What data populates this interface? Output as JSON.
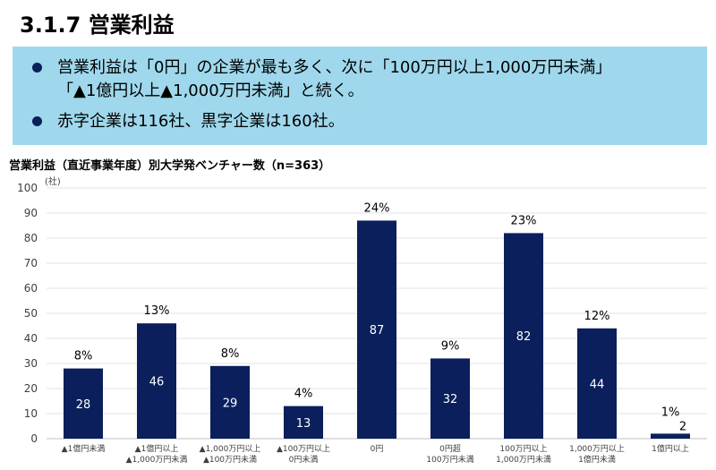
{
  "page": {
    "title": "3.1.7 営業利益"
  },
  "summary": {
    "bullets": [
      {
        "line1": "営業利益は「0円」の企業が最も多く、次に「100万円以上1,000万円未満」",
        "line2": "「▲1億円以上▲1,000万円未満」と続く。"
      },
      {
        "line1": "赤字企業は116社、黒字企業は160社。",
        "line2": ""
      }
    ]
  },
  "chart_data": {
    "type": "bar",
    "title": "営業利益（直近事業年度）別大学発ベンチャー数（n=363）",
    "ylabel": "(社)",
    "ylim": [
      0,
      100
    ],
    "yticks": [
      0,
      10,
      20,
      30,
      40,
      50,
      60,
      70,
      80,
      90,
      100
    ],
    "grid": true,
    "bar_color": "#0a1f5c",
    "categories": [
      [
        "▲1億円未満"
      ],
      [
        "▲1億円以上",
        "▲1,000万円未満"
      ],
      [
        "▲1,000万円以上",
        "▲100万円未満"
      ],
      [
        "▲100万円以上",
        "0円未満"
      ],
      [
        "0円"
      ],
      [
        "0円超",
        "100万円未満"
      ],
      [
        "100万円以上",
        "1,000万円未満"
      ],
      [
        "1,000万円以上",
        "1億円未満"
      ],
      [
        "1億円以上"
      ]
    ],
    "values": [
      28,
      46,
      29,
      13,
      87,
      32,
      82,
      44,
      2
    ],
    "value_labels": [
      "28",
      "46",
      "29",
      "13",
      "87",
      "32",
      "82",
      "44",
      "2"
    ],
    "percent_labels": [
      "8%",
      "13%",
      "8%",
      "4%",
      "24%",
      "9%",
      "23%",
      "12%",
      "1%"
    ]
  }
}
